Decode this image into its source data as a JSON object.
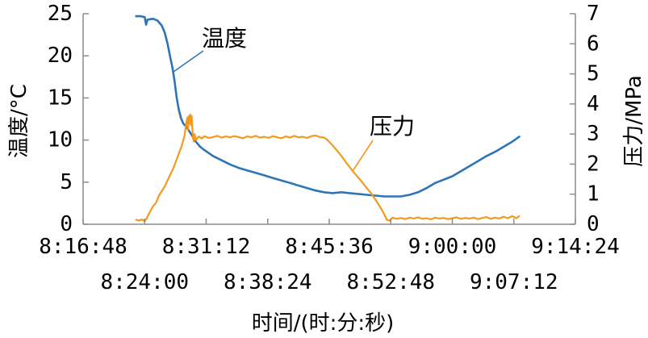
{
  "chart_data": {
    "type": "line",
    "xlabel": "时间/(时:分:秒)",
    "ylabel": "温度/°C",
    "y2label": "压力/MPa",
    "xlim": [
      "8:16:48",
      "9:14:24"
    ],
    "x_ticks": [
      "8:16:48",
      "8:24:00",
      "8:31:12",
      "8:38:24",
      "8:45:36",
      "8:52:48",
      "9:00:00",
      "9:07:12",
      "9:14:24"
    ],
    "ylim": [
      0,
      25
    ],
    "y_ticks": [
      0,
      5,
      10,
      15,
      20,
      25
    ],
    "y2lim": [
      0,
      7
    ],
    "y2_ticks": [
      0,
      1,
      2,
      3,
      4,
      5,
      6,
      7
    ],
    "grid": false,
    "series": [
      {
        "name": "温度",
        "axis": "left",
        "color": "#2e75b6",
        "x": [
          "8:23:00",
          "8:23:30",
          "8:24:00",
          "8:24:10",
          "8:24:20",
          "8:25:00",
          "8:25:30",
          "8:26:00",
          "8:26:20",
          "8:26:40",
          "8:27:00",
          "8:27:15",
          "8:27:30",
          "8:27:45",
          "8:28:00",
          "8:28:15",
          "8:28:30",
          "8:29:00",
          "8:29:30",
          "8:30:00",
          "8:30:30",
          "8:31:00",
          "8:32:00",
          "8:33:00",
          "8:34:00",
          "8:35:00",
          "8:36:00",
          "8:37:00",
          "8:38:00",
          "8:39:00",
          "8:40:00",
          "8:41:00",
          "8:42:00",
          "8:43:00",
          "8:44:00",
          "8:45:00",
          "8:46:00",
          "8:47:00",
          "8:48:00",
          "8:49:00",
          "8:50:00",
          "8:51:00",
          "8:52:00",
          "8:53:00",
          "8:54:00",
          "8:55:00",
          "8:56:00",
          "8:57:00",
          "8:58:00",
          "8:59:00",
          "9:00:00",
          "9:01:00",
          "9:02:00",
          "9:03:00",
          "9:04:00",
          "9:05:00",
          "9:06:00",
          "9:07:00",
          "9:07:50"
        ],
        "y": [
          24.7,
          24.7,
          24.6,
          23.7,
          24.3,
          24.4,
          24.2,
          23.6,
          22.8,
          21.5,
          19.8,
          18.6,
          17.0,
          15.0,
          13.6,
          12.6,
          12.0,
          11.4,
          10.6,
          9.8,
          9.2,
          8.8,
          8.1,
          7.6,
          7.1,
          6.7,
          6.4,
          6.1,
          5.8,
          5.5,
          5.2,
          4.9,
          4.6,
          4.3,
          4.0,
          3.8,
          3.7,
          3.8,
          3.7,
          3.6,
          3.5,
          3.4,
          3.3,
          3.3,
          3.3,
          3.5,
          3.8,
          4.3,
          4.9,
          5.3,
          5.7,
          6.3,
          6.9,
          7.5,
          8.1,
          8.6,
          9.2,
          9.8,
          10.4
        ]
      },
      {
        "name": "压力",
        "axis": "right",
        "color": "#f39a1e",
        "x": [
          "8:23:00",
          "8:23:20",
          "8:23:40",
          "8:24:00",
          "8:24:15",
          "8:24:30",
          "8:24:45",
          "8:25:00",
          "8:25:20",
          "8:25:40",
          "8:26:00",
          "8:26:20",
          "8:26:40",
          "8:27:00",
          "8:27:20",
          "8:27:40",
          "8:28:00",
          "8:28:20",
          "8:28:40",
          "8:28:50",
          "8:29:00",
          "8:29:05",
          "8:29:10",
          "8:29:15",
          "8:29:20",
          "8:29:25",
          "8:29:30",
          "8:29:35",
          "8:29:40",
          "8:29:45",
          "8:29:50",
          "8:30:00",
          "8:30:20",
          "8:30:40",
          "8:31:00",
          "8:31:30",
          "8:32:00",
          "8:32:30",
          "8:33:00",
          "8:33:30",
          "8:34:00",
          "8:34:30",
          "8:35:00",
          "8:35:30",
          "8:36:00",
          "8:36:30",
          "8:37:00",
          "8:37:30",
          "8:38:00",
          "8:38:30",
          "8:39:00",
          "8:39:30",
          "8:40:00",
          "8:40:30",
          "8:41:00",
          "8:41:30",
          "8:42:00",
          "8:42:30",
          "8:43:00",
          "8:43:30",
          "8:44:00",
          "8:44:30",
          "8:45:00",
          "8:45:20",
          "8:45:40",
          "8:46:00",
          "8:46:30",
          "8:47:00",
          "8:47:30",
          "8:48:00",
          "8:48:30",
          "8:49:00",
          "8:49:30",
          "8:50:00",
          "8:50:30",
          "8:51:00",
          "8:51:30",
          "8:52:00",
          "8:52:20",
          "8:52:40",
          "8:53:00",
          "8:53:30",
          "8:54:00",
          "8:54:30",
          "8:55:00",
          "8:55:30",
          "8:56:00",
          "8:56:30",
          "8:57:00",
          "8:57:30",
          "8:58:00",
          "8:58:30",
          "8:59:00",
          "8:59:30",
          "9:00:00",
          "9:00:30",
          "9:01:00",
          "9:01:30",
          "9:02:00",
          "9:02:30",
          "9:03:00",
          "9:03:30",
          "9:04:00",
          "9:04:30",
          "9:05:00",
          "9:05:30",
          "9:06:00",
          "9:06:30",
          "9:07:00",
          "9:07:30",
          "9:07:50"
        ],
        "y": [
          0.15,
          0.12,
          0.16,
          0.1,
          0.2,
          0.35,
          0.48,
          0.6,
          0.72,
          0.95,
          1.1,
          1.25,
          1.45,
          1.65,
          1.85,
          2.1,
          2.35,
          2.6,
          2.95,
          3.3,
          3.55,
          3.15,
          3.6,
          3.35,
          3.65,
          3.3,
          3.6,
          3.15,
          2.85,
          2.75,
          3.0,
          2.8,
          2.92,
          2.85,
          2.93,
          2.87,
          2.9,
          2.94,
          2.88,
          2.92,
          2.89,
          2.93,
          2.9,
          2.86,
          2.92,
          2.89,
          2.94,
          2.88,
          2.91,
          2.87,
          2.93,
          2.89,
          2.86,
          2.92,
          2.88,
          2.94,
          2.89,
          2.91,
          2.87,
          2.93,
          2.95,
          2.9,
          2.88,
          2.82,
          2.72,
          2.62,
          2.45,
          2.28,
          2.08,
          1.9,
          1.72,
          1.55,
          1.38,
          1.2,
          1.03,
          0.82,
          0.6,
          0.35,
          0.15,
          0.12,
          0.22,
          0.18,
          0.21,
          0.17,
          0.22,
          0.19,
          0.23,
          0.18,
          0.2,
          0.16,
          0.22,
          0.19,
          0.21,
          0.17,
          0.2,
          0.23,
          0.18,
          0.21,
          0.19,
          0.22,
          0.17,
          0.21,
          0.24,
          0.18,
          0.22,
          0.19,
          0.25,
          0.2,
          0.27,
          0.2,
          0.27
        ]
      }
    ]
  }
}
